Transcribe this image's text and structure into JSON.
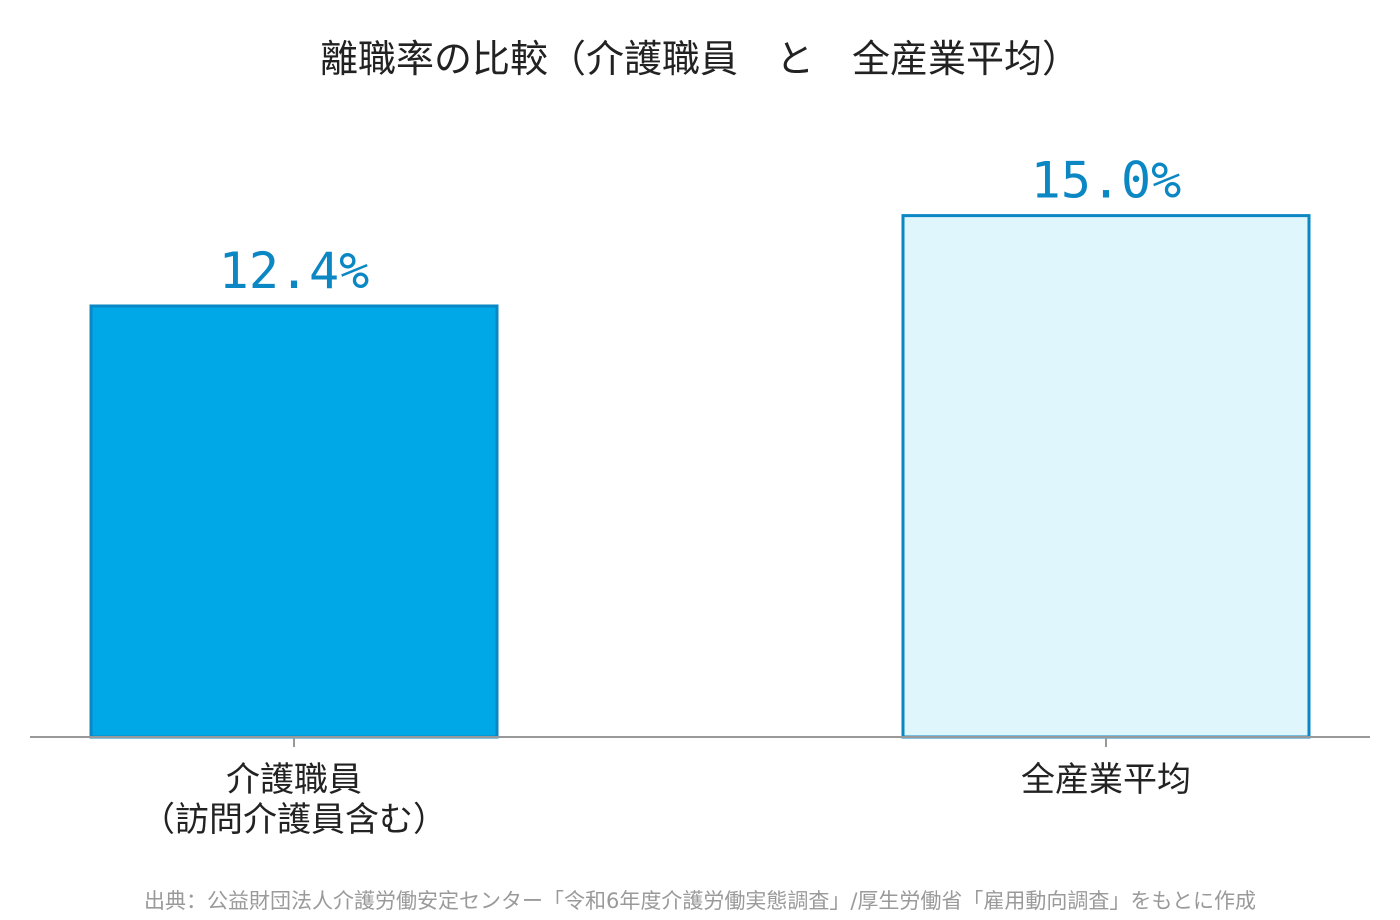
{
  "chart_data": {
    "type": "bar",
    "title": "離職率の比較（介護職員　と　全産業平均）",
    "categories": [
      [
        "介護職員",
        "（訪問介護員含む）"
      ],
      [
        "全産業平均"
      ]
    ],
    "values": [
      12.4,
      15.0
    ],
    "value_labels": [
      "12.4%",
      "15.0%"
    ],
    "xlabel": "",
    "ylabel": "",
    "ylim": [
      0,
      16.6
    ],
    "grid": false,
    "legend": "none",
    "colors": {
      "bar_fills": [
        "#00a8e8",
        "#e0f6fd"
      ],
      "bar_stroke": "#0b87c3",
      "value_text": "#0b87c3",
      "axis": "#999999"
    }
  },
  "source_note": "出典：公益財団法人介護労働安定センター「令和6年度介護労働実態調査」/厚生労働省「雇用動向調査」をもとに作成"
}
